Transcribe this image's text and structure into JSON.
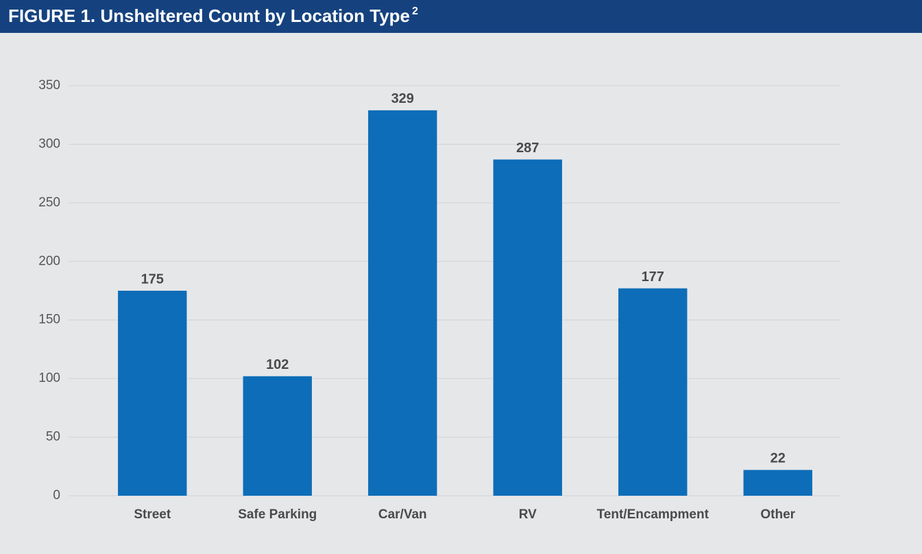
{
  "chart_data": {
    "type": "bar",
    "title": "FIGURE 1. Unsheltered Count by Location Type",
    "title_superscript": "2",
    "categories": [
      "Street",
      "Safe Parking",
      "Car/Van",
      "RV",
      "Tent/Encampment",
      "Other"
    ],
    "values": [
      175,
      102,
      329,
      287,
      177,
      22
    ],
    "color": "#0d6db8",
    "ylim": [
      0,
      350
    ],
    "yticks": [
      0,
      50,
      100,
      150,
      200,
      250,
      300,
      350
    ],
    "grid": true
  }
}
